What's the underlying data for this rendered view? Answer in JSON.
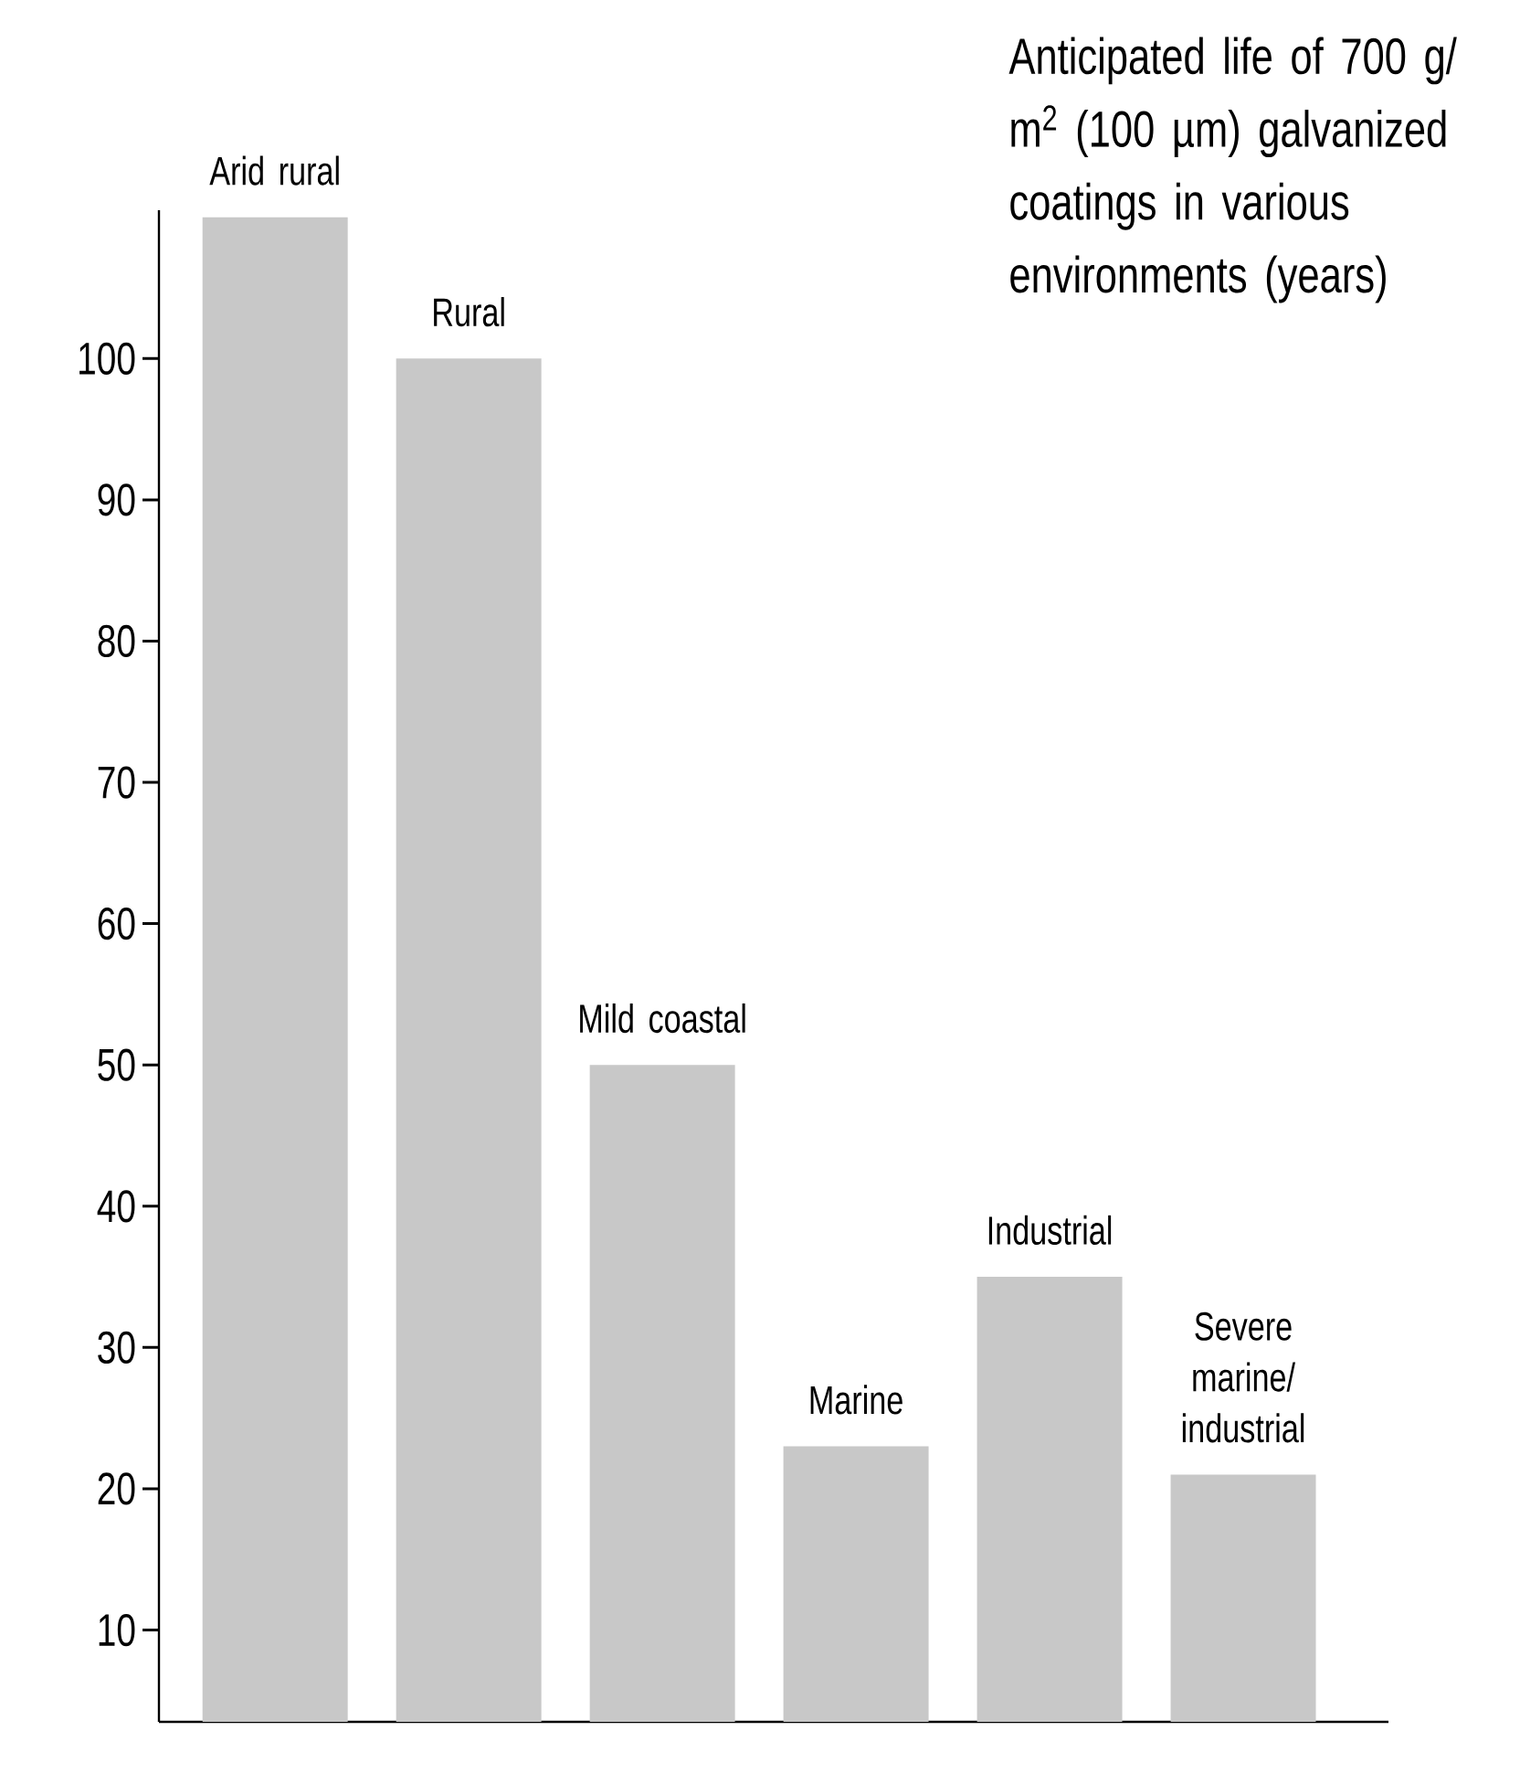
{
  "chart_data": {
    "type": "bar",
    "title": "Anticipated life of 700 g/m$^{2}$ (100 µm) galvanized coatings in various environments (years)",
    "categories": [
      "Arid rural",
      "Rural",
      "Mild coastal",
      "Marine",
      "Industrial",
      "Severe marine/industrial"
    ],
    "values": [
      110,
      100,
      50,
      23,
      35,
      21
    ],
    "color": "#c8c8c8",
    "ylim": [
      3.5,
      110.5
    ],
    "yticks": [
      10,
      20,
      30,
      40,
      50,
      60,
      70,
      80,
      90,
      100
    ],
    "grid": false
  }
}
